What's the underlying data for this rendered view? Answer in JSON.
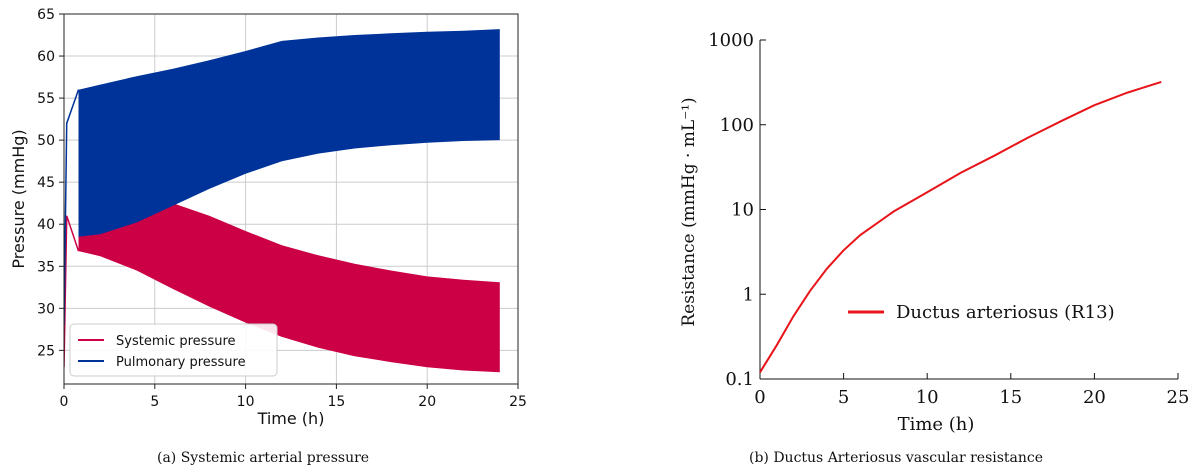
{
  "captions": {
    "a": "(a) Systemic arterial pressure",
    "b": "(b) Ductus Arteriosus vascular resistance"
  },
  "chart_data": [
    {
      "type": "area",
      "xlabel": "Time (h)",
      "ylabel": "Pressure (mmHg)",
      "xlim": [
        0,
        25
      ],
      "ylim": [
        21,
        65
      ],
      "xticks": [
        "0",
        "5",
        "10",
        "15",
        "20",
        "25"
      ],
      "yticks": [
        "25",
        "30",
        "35",
        "40",
        "45",
        "50",
        "55",
        "60",
        "65"
      ],
      "grid": true,
      "legend_position": "lower-left",
      "series": [
        {
          "name": "Systemic pressure",
          "color": "#cc0044",
          "x": [
            0.8,
            2,
            4,
            6,
            8,
            10,
            12,
            14,
            16,
            18,
            20,
            22,
            24
          ],
          "lower": [
            36.8,
            36.2,
            34.5,
            32.3,
            30.2,
            28.3,
            26.6,
            25.3,
            24.3,
            23.6,
            23.0,
            22.6,
            22.4
          ],
          "upper": [
            39.0,
            40.5,
            42.2,
            42.5,
            41.0,
            39.2,
            37.5,
            36.3,
            35.3,
            34.5,
            33.8,
            33.4,
            33.1
          ]
        },
        {
          "name": "Pulmonary pressure",
          "color": "#003399",
          "x": [
            0.8,
            2,
            4,
            6,
            8,
            10,
            12,
            14,
            16,
            18,
            20,
            22,
            24
          ],
          "lower": [
            38.5,
            38.8,
            40.2,
            42.2,
            44.2,
            46.0,
            47.5,
            48.4,
            49.0,
            49.4,
            49.7,
            49.9,
            50.0
          ],
          "upper": [
            56.0,
            56.6,
            57.6,
            58.5,
            59.5,
            60.6,
            61.8,
            62.2,
            62.5,
            62.7,
            62.9,
            63.0,
            63.2
          ]
        }
      ]
    },
    {
      "type": "line",
      "xlabel": "Time (h)",
      "ylabel": "Resistance (mmHg · mL⁻¹)",
      "xlim": [
        0,
        25
      ],
      "ylim": [
        0.1,
        1000
      ],
      "log_y": true,
      "xticks": [
        "0",
        "5",
        "10",
        "15",
        "20",
        "25"
      ],
      "yticks": [
        "0.1",
        "1",
        "10",
        "100",
        "1000"
      ],
      "grid": false,
      "legend_position": "center-right",
      "series": [
        {
          "name": "Ductus arteriosus (R13)",
          "color": "#e8141a",
          "x": [
            0,
            1,
            2,
            3,
            4,
            5,
            6,
            8,
            10,
            12,
            14,
            16,
            18,
            20,
            22,
            24
          ],
          "y": [
            0.12,
            0.25,
            0.55,
            1.1,
            2.0,
            3.3,
            5.0,
            9.5,
            16,
            27,
            43,
            70,
            110,
            170,
            240,
            320
          ]
        }
      ]
    }
  ]
}
